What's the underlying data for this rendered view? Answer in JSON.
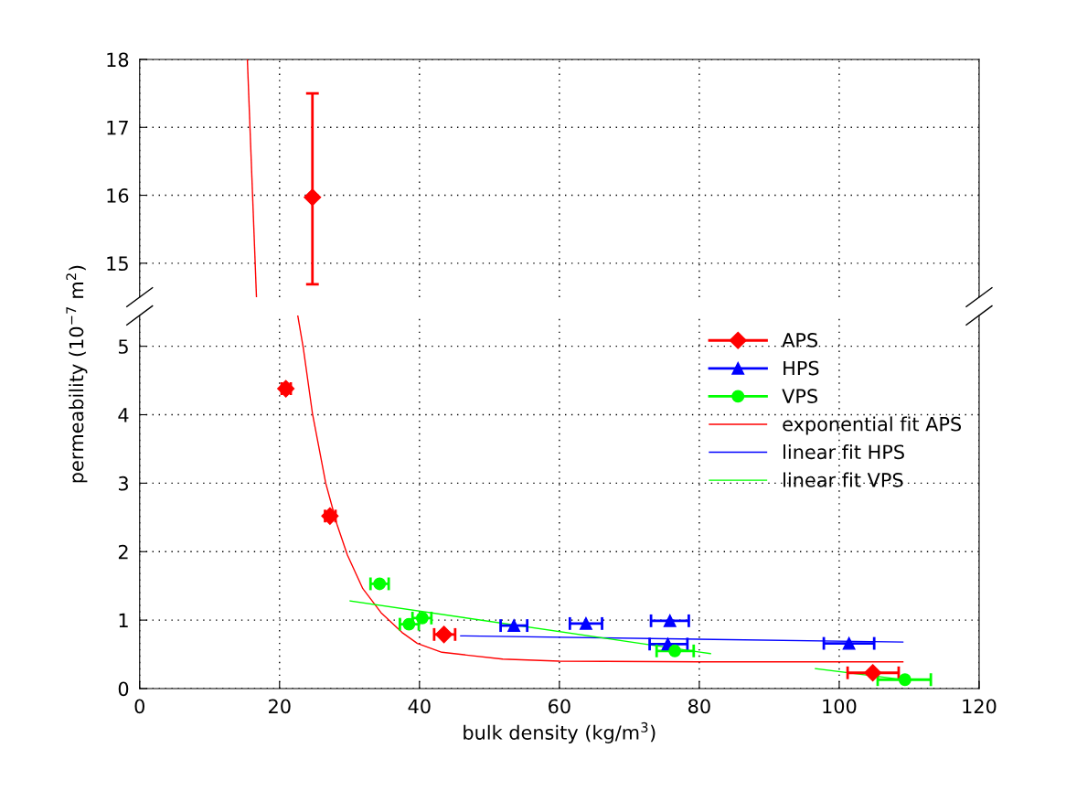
{
  "chart_data": [
    {
      "type": "scatter",
      "xlim": [
        0,
        120
      ],
      "xticks": [
        0,
        20,
        40,
        60,
        80,
        100,
        120
      ],
      "ylim": [
        14.5,
        18
      ],
      "yticks": [
        15,
        16,
        17,
        18
      ],
      "grid": true,
      "tick_labels": "y",
      "series": [
        {
          "color": "#ff0000",
          "marker": "diamond",
          "x": [
            24.7
          ],
          "values": [
            15.97
          ],
          "errors": [
            [
              14.69,
              17.5
            ]
          ]
        },
        {
          "type": "line",
          "color": "#ff0000",
          "x": [
            15.4,
            16.7
          ],
          "values": [
            18,
            14.5
          ]
        }
      ]
    },
    {
      "type": "scatter",
      "xlabel": "bulk density (kg/m$^{3}$)",
      "ylabel": "permeability (10$^{−7}$ m$^{2}$)",
      "xlim": [
        0,
        120
      ],
      "xticks": [
        0,
        20,
        40,
        60,
        80,
        100,
        120
      ],
      "ylim": [
        0,
        5.45
      ],
      "yticks": [
        0,
        1,
        2,
        3,
        4,
        5
      ],
      "grid": true,
      "legend": "top right",
      "series": [
        {
          "name": "APS",
          "color": "#ff0000",
          "marker": "diamond",
          "x": [
            20.9,
            27.2,
            43.5,
            104.8
          ],
          "values": [
            4.38,
            2.52,
            0.79,
            0.23
          ],
          "xerrors": [
            [
              20.3,
              21.6
            ],
            [
              26.5,
              28.0
            ],
            [
              42.1,
              45.1
            ],
            [
              101.2,
              108.5
            ]
          ]
        },
        {
          "name": "HPS",
          "color": "#0000ff",
          "marker": "triangle",
          "x": [
            53.5,
            63.8,
            75.8,
            75.5,
            101.4
          ],
          "values": [
            0.92,
            0.95,
            0.99,
            0.65,
            0.66
          ],
          "xerrors": [
            [
              51.6,
              55.4
            ],
            [
              61.5,
              66.1
            ],
            [
              73.1,
              78.5
            ],
            [
              72.9,
              78.3
            ],
            [
              97.8,
              105.0
            ]
          ]
        },
        {
          "name": "VPS",
          "color": "#00ff00",
          "marker": "circle",
          "x": [
            34.3,
            38.5,
            40.4,
            76.5,
            109.4
          ],
          "values": [
            1.53,
            0.94,
            1.03,
            0.55,
            0.13
          ],
          "xerrors": [
            [
              33.0,
              35.6
            ],
            [
              37.2,
              39.9
            ],
            [
              39.0,
              41.7
            ],
            [
              73.9,
              79.2
            ],
            [
              105.5,
              113.1
            ]
          ]
        },
        {
          "type": "line",
          "name": "exponential fit APS",
          "color": "#ff0000",
          "x": [
            22.6,
            23.4,
            24.7,
            26.6,
            28.2,
            29.7,
            31.9,
            34.5,
            37.5,
            39.7,
            43.2,
            51.9,
            60,
            80,
            109.1
          ],
          "values": [
            5.45,
            4.97,
            4.02,
            3.0,
            2.4,
            1.95,
            1.46,
            1.11,
            0.82,
            0.66,
            0.53,
            0.43,
            0.4,
            0.39,
            0.39
          ]
        },
        {
          "type": "line",
          "name": "linear fit HPS",
          "color": "#0000ff",
          "x": [
            45.9,
            109.1
          ],
          "values": [
            0.77,
            0.68
          ]
        },
        {
          "type": "line",
          "name": "linear fit VPS",
          "color": "#00ff00",
          "x": [
            30.1,
            81.6,
            89,
            96.6,
            109.2
          ],
          "values": [
            1.28,
            0.51,
            null,
            0.29,
            0.13
          ]
        }
      ]
    }
  ]
}
